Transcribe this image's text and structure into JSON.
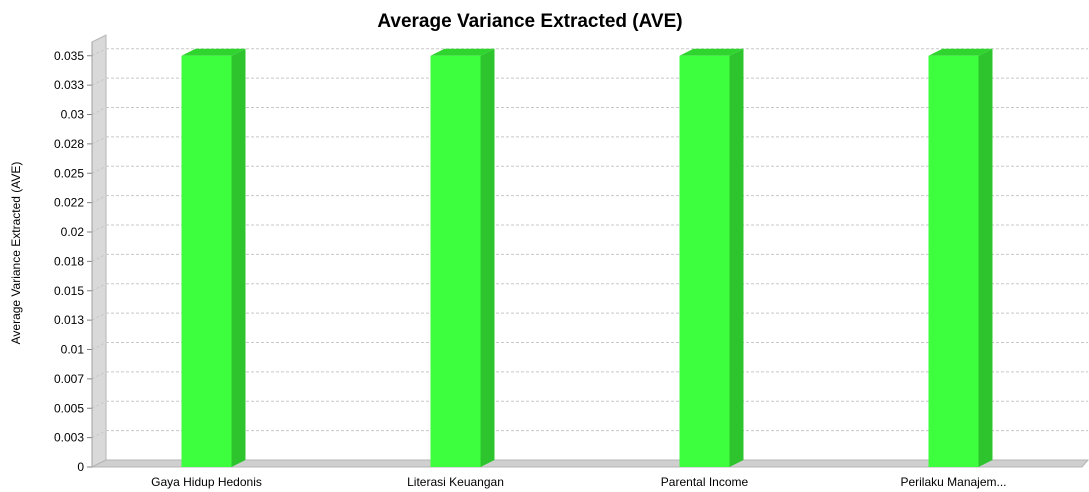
{
  "chart_data": {
    "type": "bar",
    "title": "Average Variance Extracted (AVE)",
    "xlabel": "",
    "ylabel": "Average Variance Extracted (AVE)",
    "categories": [
      "Gaya Hidup Hedonis",
      "Literasi Keuangan",
      "Parental Income",
      "Perilaku Manajem..."
    ],
    "values": [
      0.035,
      0.035,
      0.035,
      0.035
    ],
    "ylim": [
      0,
      0.036
    ],
    "yticks": [
      0,
      0.0025,
      0.005,
      0.0075,
      0.01,
      0.0125,
      0.015,
      0.0175,
      0.02,
      0.0225,
      0.025,
      0.0275,
      0.03,
      0.0325,
      0.035
    ],
    "ytick_labels": [
      "0",
      "0.003",
      "0.005",
      "0.007",
      "0.01",
      "0.013",
      "0.015",
      "0.018",
      "0.02",
      "0.022",
      "0.025",
      "0.028",
      "0.03",
      "0.033",
      "0.035"
    ],
    "grid": true,
    "legend": "none",
    "three_d": true,
    "colors": {
      "bar_front": "#3dff3d",
      "bar_side": "#2ec42e",
      "bar_top": "#2fd42f",
      "wall": "#d9d9d9",
      "floor": "#cfcfcf",
      "grid": "#c8c8c8",
      "plot_background": "#ffffff"
    }
  }
}
